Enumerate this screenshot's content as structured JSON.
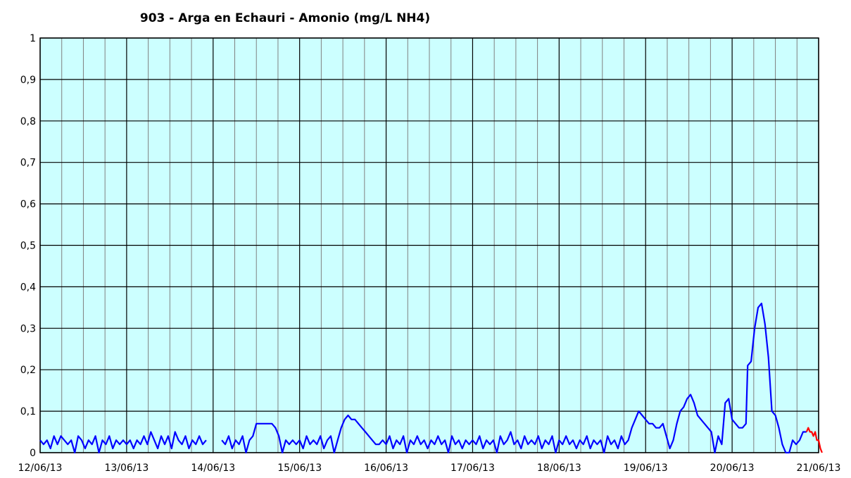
{
  "chart_data": {
    "type": "line",
    "title": "903 - Arga en Echauri - Amonio (mg/L NH4)",
    "xlabel": "",
    "ylabel": "",
    "x_tick_labels": [
      "12/06/13",
      "13/06/13",
      "14/06/13",
      "15/06/13",
      "16/06/13",
      "17/06/13",
      "18/06/13",
      "19/06/13",
      "20/06/13",
      "21/06/13"
    ],
    "y_tick_labels": [
      "0",
      "0,1",
      "0,2",
      "0,3",
      "0,4",
      "0,5",
      "0,6",
      "0,7",
      "0,8",
      "0,9",
      "1"
    ],
    "ylim": [
      0,
      1
    ],
    "xlim_days": [
      0,
      9
    ],
    "grid": true,
    "grid_minor_per_day": 4,
    "plot_background": "#ccffff",
    "series": [
      {
        "color": "#0000ff",
        "points": [
          [
            0.0,
            0.03
          ],
          [
            0.04,
            0.02
          ],
          [
            0.08,
            0.03
          ],
          [
            0.12,
            0.01
          ],
          [
            0.16,
            0.04
          ],
          [
            0.2,
            0.02
          ],
          [
            0.24,
            0.04
          ],
          [
            0.28,
            0.03
          ],
          [
            0.32,
            0.02
          ],
          [
            0.36,
            0.03
          ],
          [
            0.4,
            0.0
          ],
          [
            0.44,
            0.04
          ],
          [
            0.48,
            0.03
          ],
          [
            0.52,
            0.01
          ],
          [
            0.56,
            0.03
          ],
          [
            0.6,
            0.02
          ],
          [
            0.64,
            0.04
          ],
          [
            0.68,
            0.0
          ],
          [
            0.72,
            0.03
          ],
          [
            0.76,
            0.02
          ],
          [
            0.8,
            0.04
          ],
          [
            0.84,
            0.01
          ],
          [
            0.88,
            0.03
          ],
          [
            0.92,
            0.02
          ],
          [
            0.96,
            0.03
          ],
          [
            1.0,
            0.02
          ],
          [
            1.04,
            0.03
          ],
          [
            1.08,
            0.01
          ],
          [
            1.12,
            0.03
          ],
          [
            1.16,
            0.02
          ],
          [
            1.2,
            0.04
          ],
          [
            1.24,
            0.02
          ],
          [
            1.28,
            0.05
          ],
          [
            1.32,
            0.03
          ],
          [
            1.36,
            0.01
          ],
          [
            1.4,
            0.04
          ],
          [
            1.44,
            0.02
          ],
          [
            1.48,
            0.04
          ],
          [
            1.52,
            0.01
          ],
          [
            1.56,
            0.05
          ],
          [
            1.6,
            0.03
          ],
          [
            1.64,
            0.02
          ],
          [
            1.68,
            0.04
          ],
          [
            1.72,
            0.01
          ],
          [
            1.76,
            0.03
          ],
          [
            1.8,
            0.02
          ],
          [
            1.84,
            0.04
          ],
          [
            1.88,
            0.02
          ],
          [
            1.92,
            0.03
          ],
          null,
          [
            2.1,
            0.03
          ],
          [
            2.14,
            0.02
          ],
          [
            2.18,
            0.04
          ],
          [
            2.22,
            0.01
          ],
          [
            2.26,
            0.03
          ],
          [
            2.3,
            0.02
          ],
          [
            2.34,
            0.04
          ],
          [
            2.38,
            0.0
          ],
          [
            2.42,
            0.03
          ],
          [
            2.46,
            0.04
          ],
          [
            2.5,
            0.07
          ],
          [
            2.56,
            0.07
          ],
          [
            2.62,
            0.07
          ],
          [
            2.68,
            0.07
          ],
          [
            2.72,
            0.06
          ],
          [
            2.76,
            0.04
          ],
          [
            2.8,
            0.0
          ],
          [
            2.84,
            0.03
          ],
          [
            2.88,
            0.02
          ],
          [
            2.92,
            0.03
          ],
          [
            2.96,
            0.02
          ],
          [
            3.0,
            0.03
          ],
          [
            3.04,
            0.01
          ],
          [
            3.08,
            0.04
          ],
          [
            3.12,
            0.02
          ],
          [
            3.16,
            0.03
          ],
          [
            3.2,
            0.02
          ],
          [
            3.24,
            0.04
          ],
          [
            3.28,
            0.01
          ],
          [
            3.32,
            0.03
          ],
          [
            3.36,
            0.04
          ],
          [
            3.4,
            0.0
          ],
          [
            3.44,
            0.03
          ],
          [
            3.48,
            0.06
          ],
          [
            3.52,
            0.08
          ],
          [
            3.56,
            0.09
          ],
          [
            3.6,
            0.08
          ],
          [
            3.64,
            0.08
          ],
          [
            3.68,
            0.07
          ],
          [
            3.72,
            0.06
          ],
          [
            3.76,
            0.05
          ],
          [
            3.8,
            0.04
          ],
          [
            3.84,
            0.03
          ],
          [
            3.88,
            0.02
          ],
          [
            3.92,
            0.02
          ],
          [
            3.96,
            0.03
          ],
          [
            4.0,
            0.02
          ],
          [
            4.04,
            0.04
          ],
          [
            4.08,
            0.01
          ],
          [
            4.12,
            0.03
          ],
          [
            4.16,
            0.02
          ],
          [
            4.2,
            0.04
          ],
          [
            4.24,
            0.0
          ],
          [
            4.28,
            0.03
          ],
          [
            4.32,
            0.02
          ],
          [
            4.36,
            0.04
          ],
          [
            4.4,
            0.02
          ],
          [
            4.44,
            0.03
          ],
          [
            4.48,
            0.01
          ],
          [
            4.52,
            0.03
          ],
          [
            4.56,
            0.02
          ],
          [
            4.6,
            0.04
          ],
          [
            4.64,
            0.02
          ],
          [
            4.68,
            0.03
          ],
          [
            4.72,
            0.0
          ],
          [
            4.76,
            0.04
          ],
          [
            4.8,
            0.02
          ],
          [
            4.84,
            0.03
          ],
          [
            4.88,
            0.01
          ],
          [
            4.92,
            0.03
          ],
          [
            4.96,
            0.02
          ],
          [
            5.0,
            0.03
          ],
          [
            5.04,
            0.02
          ],
          [
            5.08,
            0.04
          ],
          [
            5.12,
            0.01
          ],
          [
            5.16,
            0.03
          ],
          [
            5.2,
            0.02
          ],
          [
            5.24,
            0.03
          ],
          [
            5.28,
            0.0
          ],
          [
            5.32,
            0.04
          ],
          [
            5.36,
            0.02
          ],
          [
            5.4,
            0.03
          ],
          [
            5.44,
            0.05
          ],
          [
            5.48,
            0.02
          ],
          [
            5.52,
            0.03
          ],
          [
            5.56,
            0.01
          ],
          [
            5.6,
            0.04
          ],
          [
            5.64,
            0.02
          ],
          [
            5.68,
            0.03
          ],
          [
            5.72,
            0.02
          ],
          [
            5.76,
            0.04
          ],
          [
            5.8,
            0.01
          ],
          [
            5.84,
            0.03
          ],
          [
            5.88,
            0.02
          ],
          [
            5.92,
            0.04
          ],
          [
            5.96,
            0.0
          ],
          [
            6.0,
            0.03
          ],
          [
            6.04,
            0.02
          ],
          [
            6.08,
            0.04
          ],
          [
            6.12,
            0.02
          ],
          [
            6.16,
            0.03
          ],
          [
            6.2,
            0.01
          ],
          [
            6.24,
            0.03
          ],
          [
            6.28,
            0.02
          ],
          [
            6.32,
            0.04
          ],
          [
            6.36,
            0.01
          ],
          [
            6.4,
            0.03
          ],
          [
            6.44,
            0.02
          ],
          [
            6.48,
            0.03
          ],
          [
            6.52,
            0.0
          ],
          [
            6.56,
            0.04
          ],
          [
            6.6,
            0.02
          ],
          [
            6.64,
            0.03
          ],
          [
            6.68,
            0.01
          ],
          [
            6.72,
            0.04
          ],
          [
            6.76,
            0.02
          ],
          [
            6.8,
            0.03
          ],
          [
            6.84,
            0.06
          ],
          [
            6.88,
            0.08
          ],
          [
            6.92,
            0.1
          ],
          [
            6.96,
            0.09
          ],
          [
            7.0,
            0.08
          ],
          [
            7.04,
            0.07
          ],
          [
            7.08,
            0.07
          ],
          [
            7.12,
            0.06
          ],
          [
            7.16,
            0.06
          ],
          [
            7.2,
            0.07
          ],
          [
            7.24,
            0.04
          ],
          [
            7.28,
            0.01
          ],
          [
            7.32,
            0.03
          ],
          [
            7.36,
            0.07
          ],
          [
            7.4,
            0.1
          ],
          [
            7.44,
            0.11
          ],
          [
            7.48,
            0.13
          ],
          [
            7.52,
            0.14
          ],
          [
            7.56,
            0.12
          ],
          [
            7.6,
            0.09
          ],
          [
            7.64,
            0.08
          ],
          [
            7.68,
            0.07
          ],
          [
            7.72,
            0.06
          ],
          [
            7.76,
            0.05
          ],
          [
            7.8,
            0.0
          ],
          [
            7.84,
            0.04
          ],
          [
            7.88,
            0.02
          ],
          [
            7.92,
            0.12
          ],
          [
            7.96,
            0.13
          ],
          [
            8.0,
            0.08
          ],
          [
            8.04,
            0.07
          ],
          [
            8.08,
            0.06
          ],
          [
            8.12,
            0.06
          ],
          [
            8.16,
            0.07
          ],
          [
            8.18,
            0.21
          ],
          [
            8.22,
            0.22
          ],
          [
            8.26,
            0.3
          ],
          [
            8.3,
            0.35
          ],
          [
            8.34,
            0.36
          ],
          [
            8.38,
            0.31
          ],
          [
            8.42,
            0.23
          ],
          [
            8.46,
            0.1
          ],
          [
            8.5,
            0.09
          ],
          [
            8.54,
            0.06
          ],
          [
            8.58,
            0.02
          ],
          [
            8.62,
            0.0
          ],
          [
            8.66,
            0.0
          ],
          [
            8.7,
            0.03
          ],
          [
            8.74,
            0.02
          ],
          [
            8.78,
            0.03
          ],
          [
            8.82,
            0.05
          ],
          [
            8.86,
            0.05
          ]
        ]
      },
      {
        "color": "#ff0000",
        "points": [
          [
            8.86,
            0.05
          ],
          [
            8.88,
            0.06
          ],
          [
            8.9,
            0.05
          ],
          [
            8.92,
            0.05
          ],
          [
            8.94,
            0.04
          ],
          [
            8.96,
            0.05
          ],
          [
            8.98,
            0.03
          ],
          [
            9.0,
            0.03
          ],
          [
            9.02,
            0.01
          ],
          [
            9.04,
            0.0
          ]
        ]
      }
    ]
  }
}
